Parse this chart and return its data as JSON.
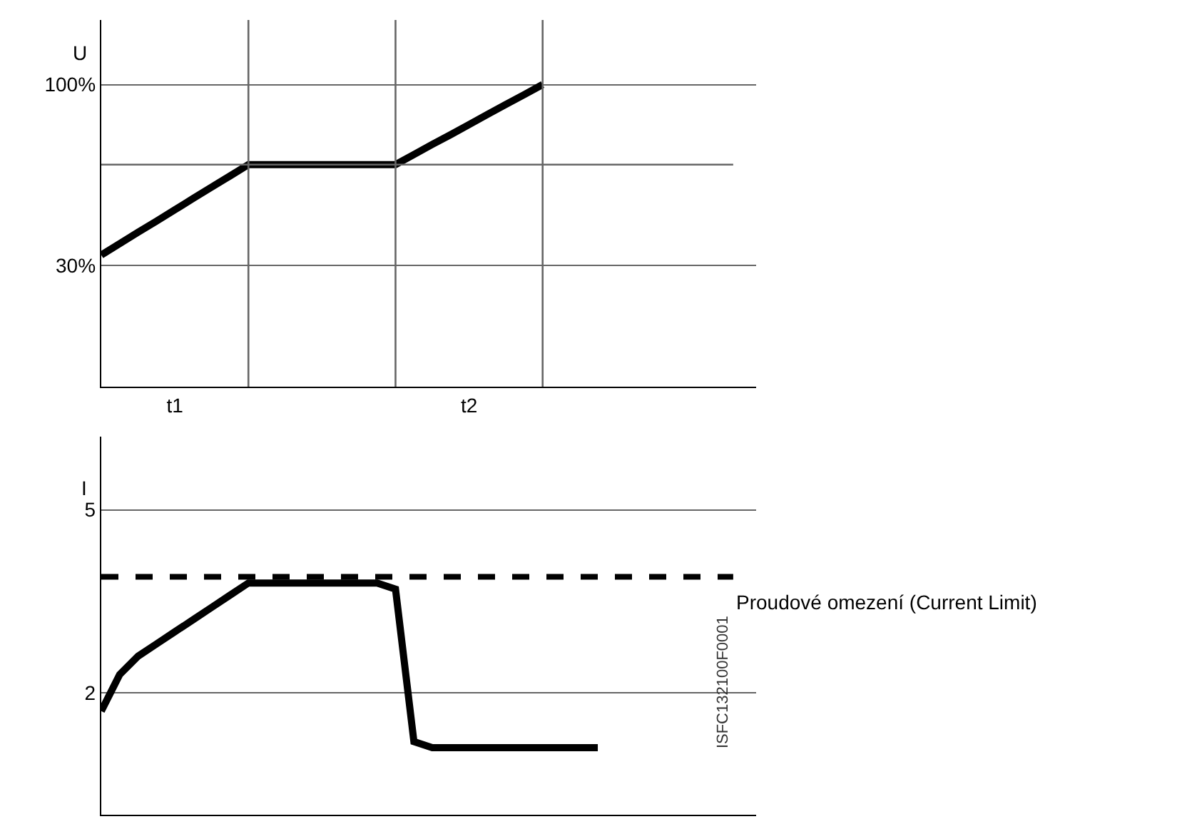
{
  "chart_data": [
    {
      "type": "line",
      "ylabel": "U",
      "categories": [
        null,
        null,
        null,
        null,
        "t1",
        null,
        null,
        null,
        null,
        null,
        null,
        null,
        null,
        null,
        null,
        null,
        null,
        null,
        null,
        null,
        "t2",
        null,
        null,
        null,
        null,
        null,
        null,
        null,
        null,
        null
      ],
      "series": [
        {
          "color": "#000000",
          "values": [
            34,
            38.4,
            42.8,
            47.1,
            51.5,
            55.9,
            60.3,
            64.6,
            69,
            69,
            69,
            69,
            69,
            69,
            69,
            69,
            69,
            72.9,
            76.8,
            80.6,
            84.5,
            88.4,
            92.3,
            96.1,
            100,
            null,
            null,
            null,
            null,
            null
          ]
        }
      ],
      "ylim": [
        -17,
        125
      ],
      "yticks": [
        {
          "value": 30,
          "label": "30%"
        },
        {
          "value": 100,
          "label": "100%"
        }
      ],
      "grid": true,
      "ref_lines": [
        {
          "axis": "y",
          "value": 69
        }
      ],
      "marker": "none",
      "line_style": "solid"
    },
    {
      "type": "line",
      "ylabel": "I",
      "categories": [
        null,
        null,
        null,
        null,
        null,
        null,
        null,
        null,
        null,
        null,
        null,
        null,
        null,
        null,
        null,
        null,
        null,
        null,
        null,
        null,
        null,
        null,
        null,
        null,
        null,
        null,
        null,
        null,
        null,
        null
      ],
      "series": [
        {
          "color": "#000000",
          "values": [
            1.7,
            2.3,
            2.6,
            2.8,
            3.0,
            3.2,
            3.4,
            3.6,
            3.8,
            3.8,
            3.8,
            3.8,
            3.8,
            3.8,
            3.8,
            3.8,
            3.7,
            1.2,
            1.1,
            1.1,
            1.1,
            1.1,
            1.1,
            1.1,
            1.1,
            1.1,
            1.1,
            1.1,
            null,
            null
          ]
        }
      ],
      "ylim": [
        0,
        6.2
      ],
      "yticks": [
        2,
        5
      ],
      "tick_labels": "y",
      "grid": "y",
      "ref_lines": [
        {
          "axis": "y",
          "value": 3.9,
          "label": "Proudové omezení (Current Limit)",
          "line_style": "dashed"
        }
      ],
      "annotations": [
        "ISFC132100F0001"
      ],
      "marker": "none",
      "line_style": "solid"
    }
  ]
}
